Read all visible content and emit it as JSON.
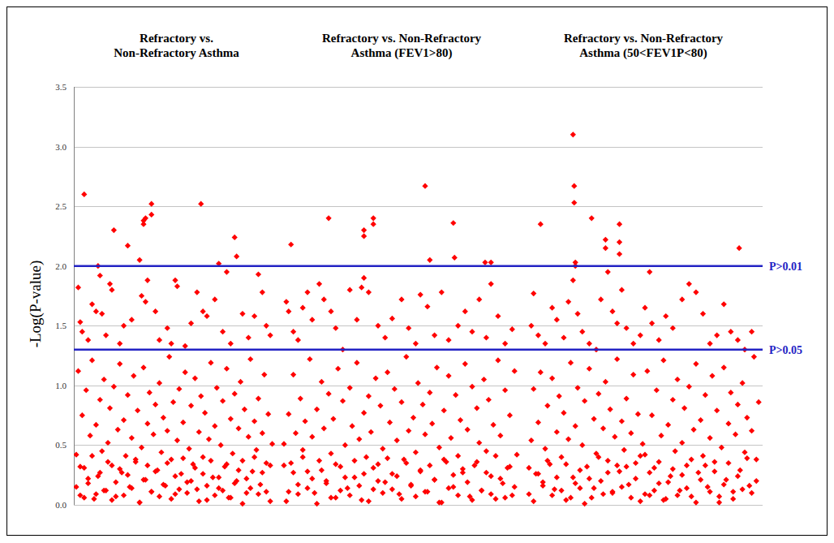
{
  "chart_data": [
    {
      "type": "scatter",
      "title": "Refractory vs.\nNon-Refractory Asthma",
      "ylabel": "-Log(P-value)",
      "color": "#ff0000",
      "marker": "diamond",
      "grid": true,
      "tick_labels": "y",
      "xlim": [
        0,
        100
      ],
      "ylim": [
        0,
        3.5
      ],
      "yticks": [
        {
          "value": 0,
          "label": "0.0"
        },
        {
          "value": 0.5,
          "label": "0.5"
        },
        {
          "value": 1,
          "label": "1.0"
        },
        {
          "value": 1.5,
          "label": "1.5"
        },
        {
          "value": 2,
          "label": "2.0"
        },
        {
          "value": 2.5,
          "label": "2.5"
        },
        {
          "value": 3,
          "label": "3.0"
        },
        {
          "value": 3.5,
          "label": "3.5"
        }
      ],
      "x": [
        4,
        11,
        12,
        19,
        26,
        32,
        34,
        34,
        35,
        38,
        38,
        63,
        72,
        76,
        80,
        81,
        92,
        1,
        2,
        3,
        6,
        8,
        10,
        13,
        15,
        17,
        18,
        22,
        24,
        28,
        33,
        35,
        36,
        40,
        42,
        46,
        48,
        50,
        51,
        55,
        58,
        61,
        64,
        66,
        70,
        74,
        78,
        84,
        87,
        90,
        94,
        96,
        98,
        0,
        1,
        2,
        3,
        4,
        5,
        6,
        7,
        8,
        9,
        10,
        11,
        12,
        13,
        14,
        15,
        16,
        17,
        18,
        19,
        20,
        21,
        22,
        23,
        24,
        25,
        26,
        27,
        28,
        29,
        30,
        31,
        32,
        33,
        34,
        35,
        36,
        37,
        38,
        39,
        40,
        41,
        42,
        43,
        44,
        45,
        46,
        47,
        48,
        49,
        50,
        51,
        52,
        53,
        54,
        55,
        56,
        57,
        58,
        59,
        60,
        61,
        62,
        63,
        64,
        65,
        66,
        67,
        68,
        69,
        70,
        71,
        72,
        73,
        74,
        75,
        76,
        77,
        78,
        79,
        80,
        81,
        82,
        83,
        84,
        85,
        86,
        87,
        88,
        89,
        90,
        91,
        92,
        93,
        94,
        95,
        96,
        97,
        98,
        99,
        0,
        2,
        4,
        6,
        8,
        10,
        12,
        14,
        16,
        18,
        20,
        22,
        24,
        26,
        28,
        30,
        32,
        34,
        36,
        38,
        40,
        42,
        44,
        46,
        48,
        50,
        52,
        54,
        56,
        58,
        60,
        62,
        64,
        66,
        68,
        70,
        72,
        74,
        76,
        78,
        80,
        82,
        84,
        86,
        88,
        90,
        92,
        94,
        96,
        98
      ],
      "values": [
        2.6,
        2,
        1.92,
        2.3,
        2.17,
        2.05,
        2.38,
        2.35,
        2.4,
        2.52,
        2.43,
        2.52,
        2.02,
        1.95,
        2.24,
        2.08,
        1.93,
        1.82,
        1.53,
        1.45,
        1.38,
        1.68,
        1.62,
        1.6,
        1.42,
        1.85,
        1.8,
        1.35,
        1.5,
        1.55,
        1.75,
        1.7,
        1.88,
        1.62,
        1.38,
        1.48,
        1.35,
        1.88,
        1.83,
        1.33,
        1.52,
        1.78,
        1.62,
        1.58,
        1.72,
        1.45,
        1.35,
        1.6,
        1.4,
        1.58,
        1.78,
        1.5,
        1.42,
        0.42,
        1.12,
        0.08,
        0.75,
        0.31,
        0.96,
        0.18,
        0.58,
        1.21,
        0.05,
        0.67,
        0.24,
        0.88,
        0.45,
        1.05,
        0.12,
        0.52,
        0.81,
        0.33,
        0.99,
        0.07,
        0.63,
        1.18,
        0.27,
        0.71,
        0.41,
        0.92,
        0.15,
        0.56,
        1.08,
        0.36,
        0.79,
        0.02,
        0.48,
        1.15,
        0.21,
        0.68,
        0.94,
        0.11,
        0.59,
        0.84,
        0.29,
        1.02,
        0.44,
        0.73,
        0.16,
        0.62,
        1.24,
        0.38,
        0.86,
        0.09,
        0.54,
        0.97,
        0.26,
        0.69,
        1.11,
        0.19,
        0.47,
        0.83,
        0.34,
        1.06,
        0.13,
        0.61,
        0.91,
        0.4,
        0.77,
        0.04,
        0.55,
        1.19,
        0.23,
        0.66,
        0.98,
        0.14,
        0.5,
        0.87,
        0.32,
        1.14,
        0.06,
        0.72,
        0.43,
        0.93,
        0.2,
        0.64,
        1.03,
        0.37,
        0.8,
        0.1,
        0.57,
        1.22,
        0.28,
        0.7,
        0.46,
        0.89,
        0.17,
        0.6,
        1.09,
        0.35,
        0.76,
        0.03,
        0.51,
        0.15,
        0.32,
        0.06,
        0.22,
        0.41,
        0.09,
        0.27,
        0.12,
        0.36,
        0.04,
        0.19,
        0.3,
        0.08,
        0.25,
        0.14,
        0.38,
        0.02,
        0.21,
        0.33,
        0.11,
        0.28,
        0.07,
        0.17,
        0.35,
        0.05,
        0.24,
        0.13,
        0.39,
        0.1,
        0.2,
        0.31,
        0.03,
        0.26,
        0.16,
        0.37,
        0.08,
        0.23,
        0.12,
        0.34,
        0.06,
        0.18,
        0.29,
        0.01,
        0.22,
        0.14,
        0.4,
        0.09,
        0.27,
        0.11,
        0.33
      ]
    },
    {
      "type": "scatter",
      "title": "Refractory vs. Non-Refractory\nAsthma (FEV1>80)",
      "color": "#ff0000",
      "marker": "diamond",
      "grid": true,
      "tick_labels": false,
      "xlim": [
        0,
        100
      ],
      "ylim": [
        0,
        3.5
      ],
      "yticks": [
        {
          "value": 0,
          "label": "0.0"
        },
        {
          "value": 0.5,
          "label": "0.5"
        },
        {
          "value": 1,
          "label": "1.0"
        },
        {
          "value": 1.5,
          "label": "1.5"
        },
        {
          "value": 2,
          "label": "2.0"
        },
        {
          "value": 2.5,
          "label": "2.5"
        },
        {
          "value": 3,
          "label": "3.0"
        },
        {
          "value": 3.5,
          "label": "3.5"
        }
      ],
      "x": [
        3,
        19,
        34,
        34,
        38,
        38,
        60,
        62,
        72,
        72.5,
        85.5,
        88,
        1,
        2,
        4,
        6,
        8,
        10,
        12,
        15,
        17,
        20,
        22,
        25,
        28,
        31,
        33,
        34,
        36,
        40,
        43,
        46,
        50,
        53,
        56,
        58,
        61,
        64,
        67,
        70,
        74,
        77,
        80,
        83,
        86,
        88,
        91,
        94,
        97,
        0,
        1,
        2,
        3,
        4,
        5,
        6,
        7,
        8,
        9,
        10,
        11,
        12,
        13,
        14,
        15,
        16,
        17,
        18,
        19,
        20,
        21,
        22,
        23,
        24,
        25,
        26,
        27,
        28,
        29,
        30,
        31,
        32,
        33,
        34,
        35,
        36,
        37,
        38,
        39,
        40,
        41,
        42,
        43,
        44,
        45,
        46,
        47,
        48,
        49,
        50,
        51,
        52,
        53,
        54,
        55,
        56,
        57,
        58,
        59,
        60,
        61,
        62,
        63,
        64,
        65,
        66,
        67,
        68,
        69,
        70,
        71,
        72,
        73,
        74,
        75,
        76,
        77,
        78,
        79,
        80,
        81,
        82,
        83,
        84,
        85,
        86,
        87,
        88,
        89,
        90,
        91,
        92,
        93,
        94,
        95,
        96,
        97,
        98,
        99,
        0,
        2,
        4,
        6,
        8,
        10,
        12,
        14,
        16,
        18,
        20,
        22,
        24,
        26,
        28,
        30,
        32,
        34,
        36,
        38,
        40,
        42,
        44,
        46,
        48,
        50,
        52,
        54,
        56,
        58,
        60,
        62,
        64,
        66,
        68,
        70,
        72,
        74,
        76,
        78,
        80,
        82,
        84,
        86,
        88,
        90,
        92,
        94,
        96,
        98
      ],
      "values": [
        2.18,
        2.4,
        2.3,
        2.25,
        2.35,
        2.4,
        2.67,
        2.05,
        2.36,
        2.07,
        2.03,
        2.03,
        1.7,
        1.62,
        1.45,
        1.38,
        1.65,
        1.78,
        1.55,
        1.85,
        1.72,
        1.62,
        1.48,
        1.3,
        1.8,
        1.55,
        1.82,
        1.9,
        1.78,
        1.5,
        1.4,
        1.56,
        1.72,
        1.48,
        1.35,
        1.76,
        1.66,
        1.42,
        1.78,
        1.38,
        1.5,
        1.62,
        1.45,
        1.72,
        1.4,
        1.85,
        1.58,
        1.35,
        1.47,
        0.51,
        0.03,
        0.76,
        0.35,
        1.09,
        0.6,
        0.17,
        0.89,
        0.46,
        0.7,
        0.28,
        1.22,
        0.57,
        0.1,
        0.8,
        0.37,
        1.03,
        0.64,
        0.2,
        0.93,
        0.43,
        0.72,
        0.06,
        1.14,
        0.32,
        0.87,
        0.5,
        0.14,
        0.98,
        0.66,
        0.23,
        1.19,
        0.55,
        0.04,
        0.77,
        0.4,
        0.91,
        0.61,
        0.13,
        1.06,
        0.34,
        0.83,
        0.47,
        0.19,
        1.11,
        0.69,
        0.26,
        0.97,
        0.54,
        0.09,
        0.86,
        0.38,
        1.24,
        0.62,
        0.16,
        0.73,
        0.44,
        1.02,
        0.29,
        0.84,
        0.59,
        0.11,
        0.94,
        0.68,
        0.21,
        1.15,
        0.48,
        0.02,
        0.79,
        0.36,
        1.08,
        0.56,
        0.15,
        0.92,
        0.41,
        0.71,
        0.27,
        1.18,
        0.63,
        0.07,
        0.99,
        0.33,
        0.81,
        0.52,
        0.12,
        1.05,
        0.45,
        0.88,
        0.24,
        0.67,
        0.05,
        1.21,
        0.58,
        0.18,
        0.96,
        0.31,
        0.75,
        0.08,
        1.12,
        0.42,
        0.33,
        0.11,
        0.27,
        0.09,
        0.4,
        0.14,
        0.22,
        0.01,
        0.29,
        0.18,
        0.06,
        0.34,
        0.12,
        0.23,
        0.08,
        0.37,
        0.16,
        0.26,
        0.03,
        0.31,
        0.2,
        0.1,
        0.39,
        0.13,
        0.24,
        0.05,
        0.35,
        0.17,
        0.07,
        0.28,
        0.11,
        0.33,
        0.21,
        0.02,
        0.38,
        0.14,
        0.25,
        0.08,
        0.3,
        0.19,
        0.04,
        0.36,
        0.12,
        0.27,
        0.09,
        0.41,
        0.22,
        0.06,
        0.32,
        0.15
      ]
    },
    {
      "type": "scatter",
      "title": "Refractory vs. Non-Refractory\nAsthma (50<FEV1P<80)",
      "color": "#ff0000",
      "marker": "diamond",
      "grid": true,
      "tick_labels": false,
      "xlim": [
        0,
        100
      ],
      "ylim": [
        0,
        3.5
      ],
      "yticks": [
        {
          "value": 0,
          "label": "0.0"
        },
        {
          "value": 0.5,
          "label": "0.5"
        },
        {
          "value": 1,
          "label": "1.0"
        },
        {
          "value": 1.5,
          "label": "1.5"
        },
        {
          "value": 2,
          "label": "2.0"
        },
        {
          "value": 2.5,
          "label": "2.5"
        },
        {
          "value": 3,
          "label": "3.0"
        },
        {
          "value": 3.5,
          "label": "3.5"
        }
      ],
      "reference_lines": [
        {
          "value": 2,
          "label": "P>0.01"
        },
        {
          "value": 1.3,
          "label": "P>0.05"
        }
      ],
      "x": [
        5,
        19,
        19.5,
        19.5,
        20,
        20,
        27,
        33,
        33,
        39,
        39,
        39,
        52,
        90.6,
        1,
        2,
        4,
        7,
        10,
        12,
        15,
        17,
        19,
        21,
        23,
        26,
        29,
        31,
        34,
        36,
        38,
        40,
        42,
        45,
        48,
        50,
        53,
        56,
        59,
        62,
        66,
        69,
        72,
        75,
        78,
        81,
        84,
        87,
        90,
        93,
        96,
        0,
        1,
        2,
        3,
        4,
        5,
        6,
        7,
        8,
        9,
        10,
        11,
        12,
        13,
        14,
        15,
        16,
        17,
        18,
        19,
        20,
        21,
        22,
        23,
        24,
        25,
        26,
        27,
        28,
        29,
        30,
        31,
        32,
        33,
        34,
        35,
        36,
        37,
        38,
        39,
        40,
        41,
        42,
        43,
        44,
        45,
        46,
        47,
        48,
        49,
        50,
        51,
        52,
        53,
        54,
        55,
        56,
        57,
        58,
        59,
        60,
        61,
        62,
        63,
        64,
        65,
        66,
        67,
        68,
        69,
        70,
        71,
        72,
        73,
        74,
        75,
        76,
        77,
        78,
        79,
        80,
        81,
        82,
        83,
        84,
        85,
        86,
        87,
        88,
        89,
        90,
        91,
        92,
        93,
        94,
        95,
        96,
        97,
        98,
        99,
        0,
        2,
        4,
        6,
        8,
        10,
        12,
        14,
        16,
        18,
        20,
        22,
        24,
        26,
        28,
        30,
        32,
        34,
        36,
        38,
        40,
        42,
        44,
        46,
        48,
        50,
        52,
        54,
        56,
        58,
        60,
        62,
        64,
        66,
        68,
        70,
        72,
        74,
        76,
        78,
        80,
        82,
        84,
        86,
        88,
        90,
        92,
        94,
        96,
        98
      ],
      "values": [
        2.35,
        3.1,
        2.67,
        2.53,
        2.03,
        2,
        2.4,
        2.22,
        2.15,
        2.2,
        2.35,
        2.1,
        1.95,
        2.15,
        1.5,
        1.77,
        1.42,
        1.35,
        1.65,
        1.55,
        1.4,
        1.7,
        1.88,
        1.6,
        1.45,
        1.35,
        1.3,
        1.72,
        1.95,
        1.62,
        1.52,
        1.8,
        1.48,
        1.35,
        1.42,
        1.65,
        1.52,
        1.38,
        1.58,
        1.48,
        1.72,
        1.85,
        1.78,
        1.6,
        1.35,
        1.42,
        1.68,
        1.45,
        1.38,
        1.3,
        1.45,
        0.09,
        0.54,
        0.97,
        0.26,
        0.69,
        1.11,
        0.19,
        0.47,
        0.83,
        0.34,
        1.06,
        0.13,
        0.61,
        0.91,
        0.4,
        0.77,
        0.04,
        0.55,
        1.19,
        0.23,
        0.66,
        0.98,
        0.14,
        0.5,
        0.87,
        0.32,
        1.14,
        0.06,
        0.72,
        0.43,
        0.93,
        0.2,
        0.64,
        1.03,
        0.37,
        0.8,
        0.1,
        0.57,
        1.22,
        0.28,
        0.7,
        0.46,
        0.89,
        0.17,
        0.6,
        1.09,
        0.35,
        0.76,
        0.03,
        0.51,
        0.42,
        1.12,
        0.08,
        0.75,
        0.31,
        0.96,
        0.18,
        0.58,
        1.21,
        0.05,
        0.67,
        0.24,
        0.88,
        0.45,
        1.05,
        0.12,
        0.52,
        0.81,
        0.33,
        0.99,
        0.07,
        0.63,
        1.18,
        0.27,
        0.71,
        0.41,
        0.92,
        0.15,
        0.56,
        1.08,
        0.36,
        0.79,
        0.02,
        0.48,
        1.15,
        0.21,
        0.68,
        0.94,
        0.11,
        0.59,
        0.84,
        0.29,
        1.02,
        0.44,
        0.73,
        0.16,
        0.62,
        1.24,
        0.38,
        0.86,
        0.31,
        0.03,
        0.26,
        0.16,
        0.37,
        0.08,
        0.23,
        0.12,
        0.34,
        0.06,
        0.18,
        0.29,
        0.01,
        0.22,
        0.14,
        0.4,
        0.09,
        0.27,
        0.11,
        0.33,
        0.15,
        0.32,
        0.06,
        0.22,
        0.41,
        0.09,
        0.27,
        0.12,
        0.36,
        0.04,
        0.19,
        0.3,
        0.08,
        0.25,
        0.14,
        0.38,
        0.02,
        0.21,
        0.33,
        0.11,
        0.28,
        0.07,
        0.17,
        0.35,
        0.05,
        0.24,
        0.13,
        0.39,
        0.1,
        0.2
      ]
    }
  ]
}
